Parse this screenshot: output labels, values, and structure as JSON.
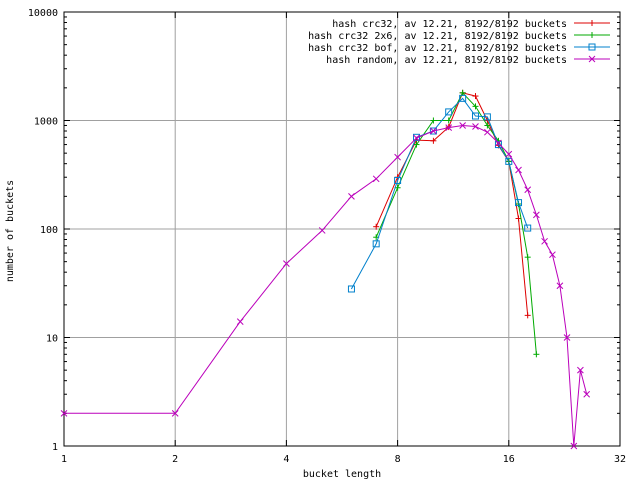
{
  "chart_data": {
    "type": "line",
    "xlabel": "bucket length",
    "ylabel": "number of buckets",
    "xscale": "log2",
    "yscale": "log10",
    "xlim": [
      1,
      32
    ],
    "ylim": [
      1,
      10000
    ],
    "x_ticks": [
      "1",
      "2",
      "4",
      "8",
      "16",
      "32"
    ],
    "y_ticks": [
      "1",
      "10",
      "100",
      "1000",
      "10000"
    ],
    "grid": true,
    "legend_position": "top-right",
    "series": [
      {
        "name": "hash crc32, av 12.21, 8192/8192 buckets",
        "color": "#dd0000",
        "marker": "plus",
        "x": [
          7,
          8,
          9,
          10,
          11,
          12,
          13,
          14,
          15,
          16,
          17,
          18
        ],
        "y": [
          105,
          300,
          660,
          650,
          870,
          1800,
          1680,
          1000,
          590,
          420,
          125,
          16
        ]
      },
      {
        "name": "hash crc32 2x6, av 12.21, 8192/8192 buckets",
        "color": "#00aa00",
        "marker": "plus",
        "x": [
          7,
          8,
          9,
          10,
          11,
          12,
          13,
          14,
          15,
          16,
          17,
          18,
          19
        ],
        "y": [
          84,
          240,
          600,
          1000,
          1000,
          1800,
          1350,
          900,
          650,
          420,
          170,
          55,
          7
        ]
      },
      {
        "name": "hash crc32 bof, av 12.21, 8192/8192 buckets",
        "color": "#0080cc",
        "marker": "square",
        "x": [
          6,
          7,
          8,
          9,
          10,
          11,
          12,
          13,
          14,
          15,
          16,
          17,
          18
        ],
        "y": [
          28,
          73,
          280,
          700,
          800,
          1200,
          1600,
          1100,
          1080,
          600,
          420,
          175,
          102
        ]
      },
      {
        "name": "hash random, av 12.21, 8192/8192 buckets",
        "color": "#bb00bb",
        "marker": "x",
        "x": [
          1,
          2,
          3,
          4,
          5,
          6,
          7,
          8,
          9,
          10,
          11,
          12,
          13,
          14,
          15,
          16,
          17,
          18,
          19,
          20,
          21,
          22,
          23,
          24,
          25,
          26
        ],
        "y": [
          2,
          2,
          14,
          48,
          97,
          200,
          290,
          460,
          690,
          800,
          860,
          900,
          880,
          780,
          620,
          490,
          350,
          230,
          135,
          77,
          58,
          30,
          10,
          1,
          5,
          3
        ]
      }
    ]
  }
}
